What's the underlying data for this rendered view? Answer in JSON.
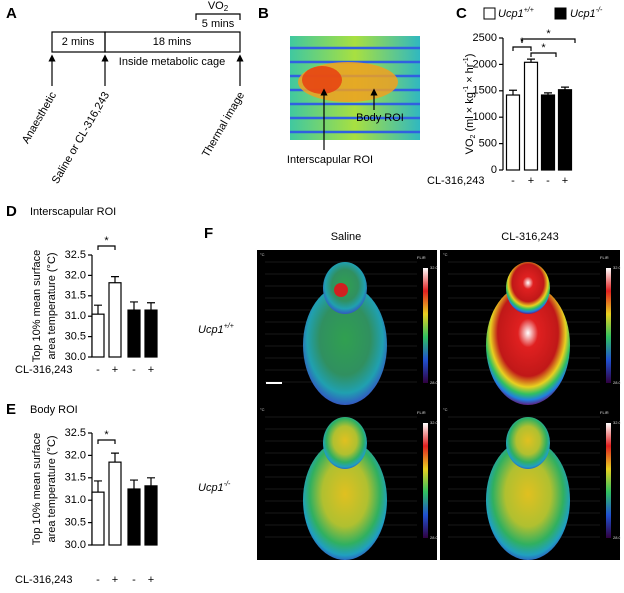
{
  "panel_labels": [
    "A",
    "B",
    "C",
    "D",
    "E",
    "F"
  ],
  "timeline": {
    "vo2": [
      "VO",
      "2"
    ],
    "vo2_duration": "5 mins",
    "step1": "2 mins",
    "step2": "18 mins",
    "cage": "Inside metabolic cage",
    "events": [
      "Anaesthetic",
      "Saline or CL-316,243",
      "Thermal image"
    ]
  },
  "thermal_photo": {
    "labels": [
      "Interscapular ROI",
      "Body ROI"
    ]
  },
  "thermal_grid": {
    "columns": [
      "Saline",
      "CL-316,243"
    ],
    "rows": [
      {
        "gene": "Ucp1",
        "genotype": "+/+"
      },
      {
        "gene": "Ucp1",
        "genotype": "-/-"
      }
    ],
    "scale": {
      "unit": "°C",
      "brand": "FLIR",
      "max": "32.0",
      "min": "28.0"
    }
  },
  "chart_data": [
    {
      "type": "bar",
      "y_label": [
        "VO",
        "2",
        " (ml × kg",
        "-1",
        " × hr",
        "-1",
        ")"
      ],
      "x_label": "CL-316,243",
      "categories": [
        "-",
        "+"
      ],
      "series": [
        {
          "name": "Ucp1",
          "name_sup": "+/+",
          "color": "#ffffff",
          "values": [
            1420,
            2040
          ],
          "errors": [
            90,
            60
          ]
        },
        {
          "name": "Ucp1",
          "name_sup": "-/-",
          "color": "#000000",
          "values": [
            1420,
            1520
          ],
          "errors": [
            40,
            50
          ]
        }
      ],
      "ylim": [
        0,
        2500
      ],
      "yticks": [
        0,
        500,
        1000,
        1500,
        2000,
        2500
      ],
      "significance": [
        "*",
        "*",
        "*"
      ]
    },
    {
      "type": "bar",
      "title": "Interscapular ROI",
      "y_label": [
        "Top 10% mean surface",
        "area temperature (°C)"
      ],
      "x_label": "CL-316,243",
      "categories": [
        "-",
        "+"
      ],
      "series": [
        {
          "color": "#ffffff",
          "values": [
            31.05,
            31.82
          ],
          "errors": [
            0.22,
            0.15
          ]
        },
        {
          "color": "#000000",
          "values": [
            31.15,
            31.15
          ],
          "errors": [
            0.2,
            0.18
          ]
        }
      ],
      "ylim": [
        30,
        32.5
      ],
      "yticks": [
        {
          "value": 30,
          "label": "30.0"
        },
        {
          "value": 30.5,
          "label": "30.5"
        },
        {
          "value": 31,
          "label": "31.0"
        },
        {
          "value": 31.5,
          "label": "31.5"
        },
        {
          "value": 32,
          "label": "32.0"
        },
        {
          "value": 32.5,
          "label": "32.5"
        }
      ],
      "significance": [
        "*"
      ]
    },
    {
      "type": "bar",
      "title": "Body ROI",
      "y_label": [
        "Top 10% mean surface",
        "area temperature (°C)"
      ],
      "x_label": "CL-316,243",
      "categories": [
        "-",
        "+"
      ],
      "series": [
        {
          "color": "#ffffff",
          "values": [
            31.18,
            31.85
          ],
          "errors": [
            0.25,
            0.2
          ]
        },
        {
          "color": "#000000",
          "values": [
            31.25,
            31.32
          ],
          "errors": [
            0.2,
            0.18
          ]
        }
      ],
      "ylim": [
        30,
        32.5
      ],
      "yticks": [
        {
          "value": 30,
          "label": "30.0"
        },
        {
          "value": 30.5,
          "label": "30.5"
        },
        {
          "value": 31,
          "label": "31.0"
        },
        {
          "value": 31.5,
          "label": "31.5"
        },
        {
          "value": 32,
          "label": "32.0"
        },
        {
          "value": 32.5,
          "label": "32.5"
        }
      ],
      "significance": [
        "*"
      ]
    }
  ]
}
